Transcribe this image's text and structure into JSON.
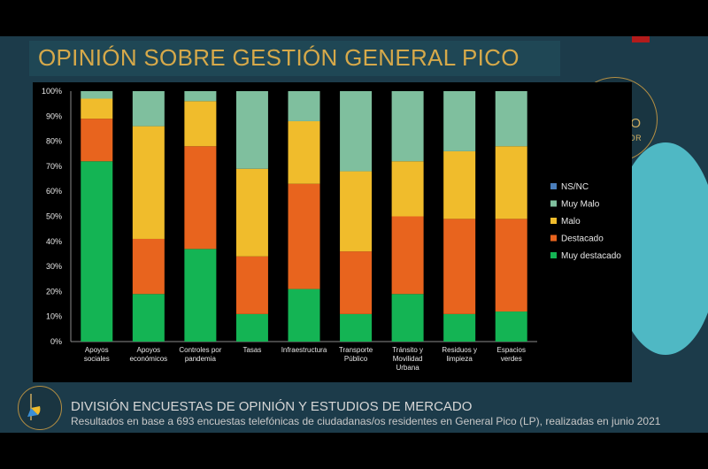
{
  "slide": {
    "title": "OPINIÓN SOBRE GESTIÓN GENERAL PICO",
    "logo_name": "GRUPO",
    "logo_sub": "CONSULTOR",
    "footer_title": "DIVISIÓN ENCUESTAS DE OPINIÓN Y ESTUDIOS DE MERCADO",
    "footer_sub": "Resultados en base a 693 encuestas telefónicas de ciudadanas/os residentes en General Pico (LP), realizadas en junio 2021"
  },
  "colors": {
    "background": "#1c3b4a",
    "title": "#d6a94a",
    "ns_nc": "#4a7ebb",
    "muy_malo": "#7fbf9e",
    "malo": "#f0bc2c",
    "destacado": "#e8641e",
    "muy_destacado": "#14b454"
  },
  "chart_data": {
    "type": "bar",
    "stacked": true,
    "categories": [
      [
        "Apoyos",
        "sociales"
      ],
      [
        "Apoyos",
        "económicos"
      ],
      [
        "Controles por",
        "pandemia"
      ],
      [
        "Tasas"
      ],
      [
        "Infraestructura"
      ],
      [
        "Transporte",
        "Público"
      ],
      [
        "Tránsito y",
        "Movilidad",
        "Urbana"
      ],
      [
        "Residuos y",
        "limpieza"
      ],
      [
        "Espacios",
        "verdes"
      ]
    ],
    "series": [
      {
        "name": "Muy destacado",
        "color": "#14b454",
        "values": [
          72,
          19,
          37,
          11,
          21,
          11,
          19,
          11,
          12
        ]
      },
      {
        "name": "Destacado",
        "color": "#e8641e",
        "values": [
          17,
          22,
          41,
          23,
          42,
          25,
          31,
          38,
          37
        ]
      },
      {
        "name": "Malo",
        "color": "#f0bc2c",
        "values": [
          8,
          45,
          18,
          35,
          25,
          32,
          22,
          27,
          29
        ]
      },
      {
        "name": "Muy Malo",
        "color": "#7fbf9e",
        "values": [
          3,
          14,
          4,
          31,
          12,
          32,
          28,
          24,
          22
        ]
      },
      {
        "name": "NS/NC",
        "color": "#4a7ebb",
        "values": [
          0,
          0,
          0,
          0,
          0,
          0,
          0,
          0,
          0
        ]
      }
    ],
    "legend_order": [
      "NS/NC",
      "Muy Malo",
      "Malo",
      "Destacado",
      "Muy destacado"
    ],
    "y_ticks": [
      "0%",
      "10%",
      "20%",
      "30%",
      "40%",
      "50%",
      "60%",
      "70%",
      "80%",
      "90%",
      "100%"
    ],
    "ylim": [
      0,
      100
    ],
    "grid": false,
    "legend_position": "right"
  }
}
